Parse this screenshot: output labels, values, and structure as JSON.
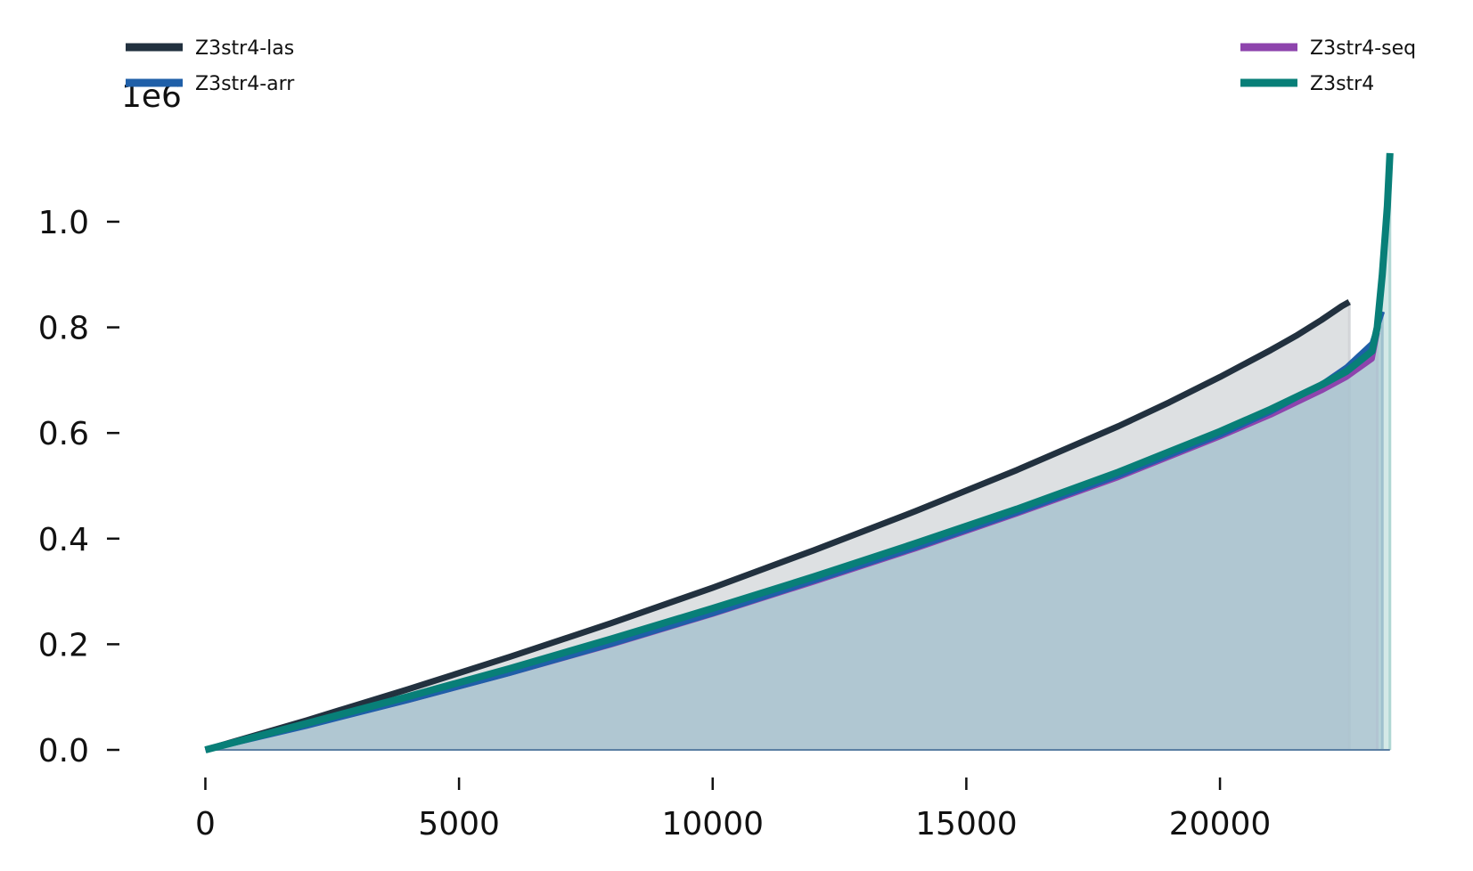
{
  "chart_data": {
    "type": "line",
    "title": "",
    "xlabel": "",
    "ylabel": "",
    "y_offset_label": "1e6",
    "xlim": [
      -500,
      23600
    ],
    "ylim": [
      0,
      1.15
    ],
    "x_ticks": [
      0,
      5000,
      10000,
      15000,
      20000
    ],
    "x_tick_labels": [
      "0",
      "5000",
      "10000",
      "15000",
      "20000"
    ],
    "y_ticks": [
      0.0,
      0.2,
      0.4,
      0.6,
      0.8,
      1.0
    ],
    "y_tick_labels": [
      "0.0",
      "0.2",
      "0.4",
      "0.6",
      "0.8",
      "1.0"
    ],
    "grid": false,
    "legend_placement": "top (left and right groups)",
    "series": [
      {
        "name": "Z3str4-las",
        "color": "#22313f",
        "fill": "#cfd3d6",
        "x": [
          0,
          2000,
          4000,
          6000,
          8000,
          10000,
          12000,
          14000,
          16000,
          18000,
          19000,
          20000,
          21000,
          21500,
          22000,
          22400,
          22550
        ],
        "y": [
          0,
          0.056,
          0.115,
          0.176,
          0.24,
          0.307,
          0.378,
          0.452,
          0.53,
          0.613,
          0.658,
          0.706,
          0.757,
          0.784,
          0.814,
          0.84,
          0.848
        ]
      },
      {
        "name": "Z3str4-arr",
        "color": "#1f5fa8",
        "fill": "#8ba6c6",
        "x": [
          0,
          2000,
          4000,
          6000,
          8000,
          10000,
          12000,
          14000,
          16000,
          18000,
          20000,
          21000,
          22000,
          22500,
          23000,
          23200
        ],
        "y": [
          0,
          0.045,
          0.094,
          0.145,
          0.2,
          0.258,
          0.32,
          0.383,
          0.449,
          0.519,
          0.596,
          0.64,
          0.692,
          0.725,
          0.77,
          0.83
        ]
      },
      {
        "name": "Z3str4-seq",
        "color": "#8e44ad",
        "fill": "#b9b2d3",
        "x": [
          0,
          2000,
          4000,
          6000,
          8000,
          10000,
          12000,
          14000,
          16000,
          18000,
          20000,
          21000,
          22000,
          22500,
          23000,
          23100
        ],
        "y": [
          0,
          0.046,
          0.094,
          0.145,
          0.199,
          0.257,
          0.318,
          0.381,
          0.447,
          0.516,
          0.593,
          0.634,
          0.68,
          0.706,
          0.74,
          0.79
        ]
      },
      {
        "name": "Z3str4",
        "color": "#087f78",
        "fill": "#a9d4cf",
        "x": [
          0,
          2000,
          4000,
          6000,
          8000,
          10000,
          12000,
          14000,
          16000,
          18000,
          20000,
          21000,
          22000,
          22500,
          23000,
          23100,
          23200,
          23300,
          23350
        ],
        "y": [
          0,
          0.05,
          0.101,
          0.154,
          0.21,
          0.268,
          0.328,
          0.391,
          0.456,
          0.526,
          0.603,
          0.645,
          0.691,
          0.717,
          0.755,
          0.8,
          0.9,
          1.03,
          1.13
        ]
      }
    ]
  }
}
